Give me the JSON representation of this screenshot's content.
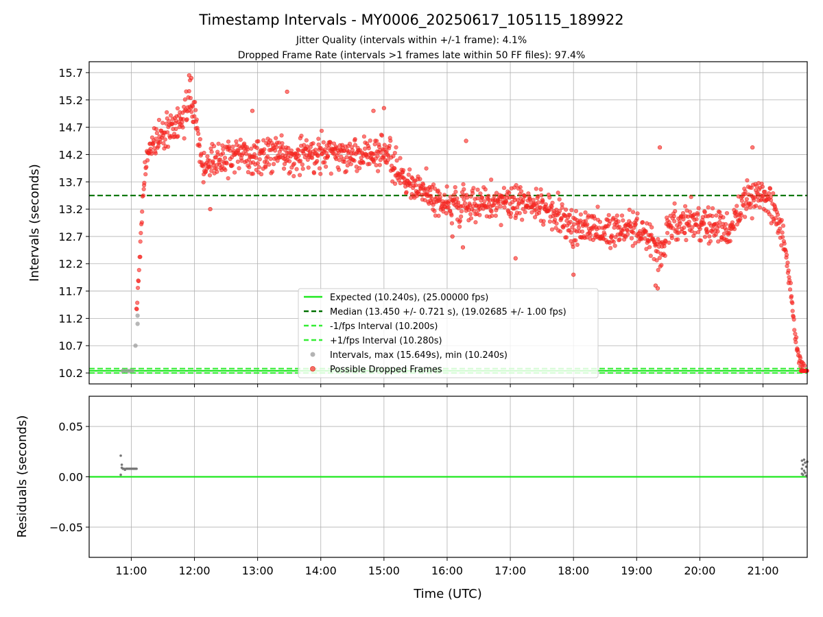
{
  "header": {
    "title": "Timestamp Intervals - MY0006_20250617_105115_189922",
    "subtitle1": "Jitter Quality (intervals within +/-1 frame): 4.1%",
    "subtitle2": "Dropped Frame Rate (intervals >1 frames late within 50 FF files): 97.4%"
  },
  "colors": {
    "expected": "#1ee81e",
    "median": "#007000",
    "fps_bounds": "#33ee33",
    "dropped": "#ff2020",
    "intervals": "#999999",
    "residuals": "#777777"
  },
  "chart_data": [
    {
      "type": "scatter",
      "ylabel": "Intervals (seconds)",
      "xlim": [
        "10:20",
        "21:42"
      ],
      "ylim": [
        10.0,
        15.9
      ],
      "y_ticks": [
        "10.2",
        "10.7",
        "11.2",
        "11.7",
        "12.2",
        "12.7",
        "13.2",
        "13.7",
        "14.2",
        "14.7",
        "15.2",
        "15.7"
      ],
      "grid": true,
      "legend_position": "lower-center",
      "reference_lines": [
        {
          "name": "Expected (10.240s), (25.00000 fps)",
          "y": 10.24,
          "style": "solid"
        },
        {
          "name": "Median (13.450 +/- 0.721 s), (19.02685 +/- 1.00 fps)",
          "y": 13.45,
          "style": "dashed"
        },
        {
          "name": "-1/fps Interval (10.200s)",
          "y": 10.2,
          "style": "dashed"
        },
        {
          "name": "+1/fps Interval (10.280s)",
          "y": 10.28,
          "style": "dashed"
        }
      ],
      "series": [
        {
          "name": "Intervals, max (15.649s), min (10.240s)",
          "points": [
            [
              "10:52",
              10.24
            ],
            [
              "10:55",
              10.24
            ],
            [
              "10:58",
              10.24
            ],
            [
              "11:01",
              10.24
            ],
            [
              "11:04",
              10.7
            ],
            [
              "11:06",
              11.25
            ],
            [
              "11:06",
              11.1
            ]
          ]
        },
        {
          "name": "Possible Dropped Frames",
          "trend": [
            [
              "11:05",
              11.3
            ],
            [
              "11:08",
              12.3
            ],
            [
              "11:10",
              13.0
            ],
            [
              "11:12",
              13.7
            ],
            [
              "11:15",
              14.2
            ],
            [
              "11:20",
              14.4
            ],
            [
              "11:30",
              14.55
            ],
            [
              "11:40",
              14.7
            ],
            [
              "11:50",
              14.8
            ],
            [
              "11:55",
              15.2
            ],
            [
              "12:00",
              15.0
            ],
            [
              "12:04",
              14.5
            ],
            [
              "12:08",
              14.0
            ],
            [
              "12:15",
              14.1
            ],
            [
              "12:30",
              14.15
            ],
            [
              "13:00",
              14.2
            ],
            [
              "13:30",
              14.15
            ],
            [
              "14:00",
              14.25
            ],
            [
              "14:30",
              14.2
            ],
            [
              "15:00",
              14.2
            ],
            [
              "15:10",
              14.0
            ],
            [
              "15:20",
              13.7
            ],
            [
              "15:40",
              13.5
            ],
            [
              "16:00",
              13.35
            ],
            [
              "16:30",
              13.3
            ],
            [
              "17:00",
              13.35
            ],
            [
              "17:30",
              13.3
            ],
            [
              "17:50",
              13.0
            ],
            [
              "18:00",
              12.85
            ],
            [
              "18:30",
              12.8
            ],
            [
              "19:00",
              12.85
            ],
            [
              "19:15",
              12.6
            ],
            [
              "19:22",
              12.3
            ],
            [
              "19:30",
              12.85
            ],
            [
              "19:45",
              13.0
            ],
            [
              "20:00",
              13.0
            ],
            [
              "20:15",
              12.9
            ],
            [
              "20:30",
              12.8
            ],
            [
              "20:40",
              13.3
            ],
            [
              "20:50",
              13.4
            ],
            [
              "21:00",
              13.4
            ],
            [
              "21:10",
              13.2
            ],
            [
              "21:18",
              12.7
            ],
            [
              "21:23",
              12.2
            ],
            [
              "21:27",
              11.6
            ],
            [
              "21:30",
              11.0
            ],
            [
              "21:32",
              10.7
            ],
            [
              "21:34",
              10.45
            ],
            [
              "21:40",
              10.24
            ]
          ],
          "outliers": [
            [
              "11:55",
              15.65
            ],
            [
              "11:57",
              15.6
            ],
            [
              "13:28",
              15.35
            ],
            [
              "12:55",
              15.0
            ],
            [
              "14:50",
              15.0
            ],
            [
              "15:00",
              15.05
            ],
            [
              "19:22",
              14.33
            ],
            [
              "20:50",
              14.33
            ],
            [
              "16:18",
              14.45
            ],
            [
              "17:05",
              12.3
            ],
            [
              "18:00",
              12.0
            ],
            [
              "19:18",
              11.8
            ],
            [
              "19:20",
              11.75
            ],
            [
              "16:05",
              12.7
            ],
            [
              "16:15",
              12.5
            ],
            [
              "12:15",
              13.2
            ]
          ]
        }
      ]
    },
    {
      "type": "scatter",
      "xlabel": "Time (UTC)",
      "ylabel": "Residuals (seconds)",
      "x_ticks": [
        "11:00",
        "12:00",
        "13:00",
        "14:00",
        "15:00",
        "16:00",
        "17:00",
        "18:00",
        "19:00",
        "20:00",
        "21:00"
      ],
      "ylim": [
        -0.08,
        0.08
      ],
      "y_ticks": [
        "0.05",
        "0.00",
        "−0.05"
      ],
      "grid": true,
      "zero_line": 0.0,
      "series": [
        {
          "name": "residuals",
          "points": [
            [
              "10:50",
              0.021
            ],
            [
              "10:50",
              0.002
            ],
            [
              "10:51",
              0.012
            ],
            [
              "10:51",
              0.009
            ],
            [
              "10:52",
              0.008
            ],
            [
              "10:53",
              0.008
            ],
            [
              "10:54",
              0.007
            ],
            [
              "10:55",
              0.008
            ],
            [
              "10:56",
              0.008
            ],
            [
              "10:57",
              0.008
            ],
            [
              "10:58",
              0.008
            ],
            [
              "10:59",
              0.008
            ],
            [
              "11:00",
              0.008
            ],
            [
              "11:01",
              0.008
            ],
            [
              "11:02",
              0.008
            ],
            [
              "11:03",
              0.008
            ],
            [
              "11:04",
              0.008
            ],
            [
              "11:05",
              0.008
            ],
            [
              "21:37",
              0.016
            ],
            [
              "21:37",
              0.008
            ],
            [
              "21:37",
              0.003
            ],
            [
              "21:38",
              0.012
            ],
            [
              "21:38",
              0.002
            ],
            [
              "21:39",
              0.017
            ],
            [
              "21:39",
              0.006
            ],
            [
              "21:40",
              0.014
            ],
            [
              "21:40",
              0.004
            ],
            [
              "21:41",
              0.01
            ],
            [
              "21:41",
              0.001
            ],
            [
              "21:42",
              0.015
            ]
          ]
        }
      ]
    }
  ]
}
